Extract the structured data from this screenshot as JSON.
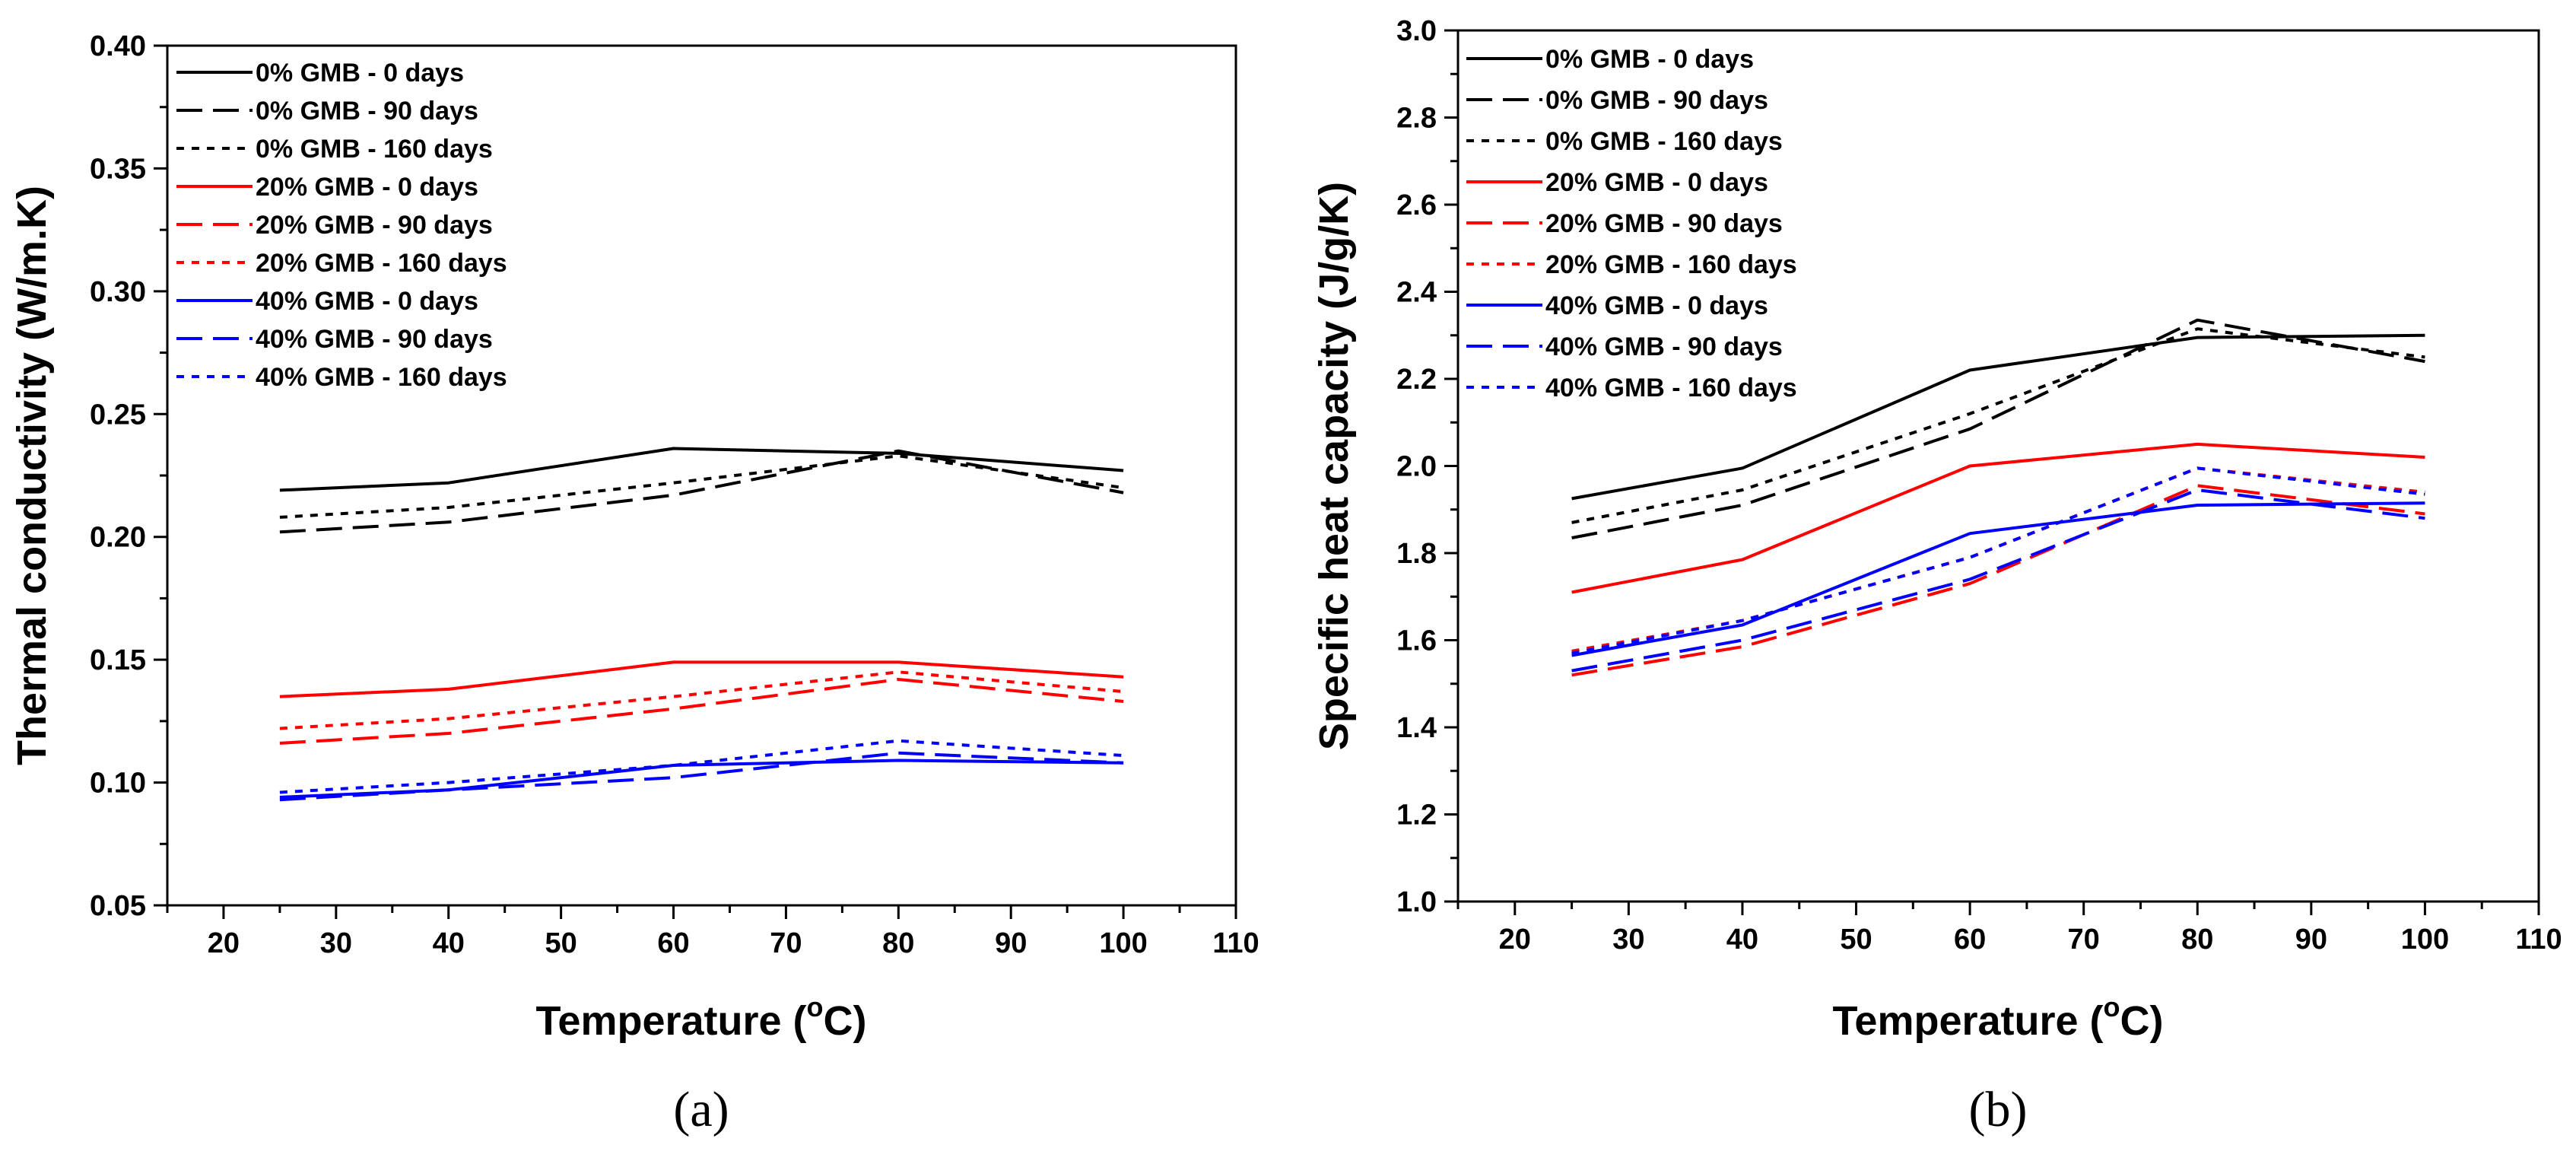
{
  "styles": {
    "colors": {
      "0% GMB": "#000000",
      "20% GMB": "#ff0000",
      "40% GMB": "#0000ff"
    },
    "dash": {
      "0 days": "solid",
      "90 days": "long-dash",
      "160 days": "short-dash"
    }
  },
  "chart_data": [
    {
      "type": "line",
      "panel_label": "(a)",
      "xlabel_main": "Temperature (",
      "xlabel_sup": "o",
      "xlabel_end": "C)",
      "ylabel": "Thermal conductivity (W/m.K)",
      "xlim": [
        15,
        110
      ],
      "ylim": [
        0.05,
        0.4
      ],
      "xticks": [
        20,
        30,
        40,
        50,
        60,
        70,
        80,
        90,
        100,
        110
      ],
      "yticks": [
        "0.05",
        "0.10",
        "0.15",
        "0.20",
        "0.25",
        "0.30",
        "0.35",
        "0.40"
      ],
      "legend_position": "top-left",
      "x": [
        25,
        40,
        60,
        80,
        100
      ],
      "series": [
        {
          "name": "0% GMB - 0 days",
          "group": "0% GMB",
          "age": "0 days",
          "values": [
            0.219,
            0.222,
            0.236,
            0.234,
            0.227
          ]
        },
        {
          "name": "0% GMB - 90 days",
          "group": "0% GMB",
          "age": "90 days",
          "values": [
            0.202,
            0.206,
            0.217,
            0.235,
            0.218
          ]
        },
        {
          "name": "0% GMB - 160 days",
          "group": "0% GMB",
          "age": "160 days",
          "values": [
            0.208,
            0.212,
            0.222,
            0.233,
            0.22
          ]
        },
        {
          "name": "20% GMB - 0 days",
          "group": "20% GMB",
          "age": "0 days",
          "values": [
            0.135,
            0.138,
            0.149,
            0.149,
            0.143
          ]
        },
        {
          "name": "20% GMB - 90 days",
          "group": "20% GMB",
          "age": "90 days",
          "values": [
            0.116,
            0.12,
            0.13,
            0.142,
            0.133
          ]
        },
        {
          "name": "20% GMB - 160 days",
          "group": "20% GMB",
          "age": "160 days",
          "values": [
            0.122,
            0.126,
            0.135,
            0.145,
            0.137
          ]
        },
        {
          "name": "40% GMB - 0 days",
          "group": "40% GMB",
          "age": "0 days",
          "values": [
            0.094,
            0.097,
            0.107,
            0.109,
            0.108
          ]
        },
        {
          "name": "40% GMB - 90 days",
          "group": "40% GMB",
          "age": "90 days",
          "values": [
            0.093,
            0.097,
            0.102,
            0.112,
            0.108
          ]
        },
        {
          "name": "40% GMB - 160 days",
          "group": "40% GMB",
          "age": "160 days",
          "values": [
            0.096,
            0.1,
            0.107,
            0.117,
            0.111
          ]
        }
      ]
    },
    {
      "type": "line",
      "panel_label": "(b)",
      "xlabel_main": "Temperature (",
      "xlabel_sup": "o",
      "xlabel_end": "C)",
      "ylabel": "Specific heat capacity (J/g/K)",
      "xlim": [
        15,
        110
      ],
      "ylim": [
        1.0,
        3.0
      ],
      "xticks": [
        20,
        30,
        40,
        50,
        60,
        70,
        80,
        90,
        100,
        110
      ],
      "yticks": [
        "1.0",
        "1.2",
        "1.4",
        "1.6",
        "1.8",
        "2.0",
        "2.2",
        "2.4",
        "2.6",
        "2.8",
        "3.0"
      ],
      "legend_position": "top-left",
      "x": [
        25,
        40,
        60,
        80,
        100
      ],
      "series": [
        {
          "name": "0% GMB - 0 days",
          "group": "0% GMB",
          "age": "0 days",
          "values": [
            1.925,
            1.995,
            2.22,
            2.295,
            2.3
          ]
        },
        {
          "name": "0% GMB - 90 days",
          "group": "0% GMB",
          "age": "90 days",
          "values": [
            1.835,
            1.91,
            2.085,
            2.335,
            2.24
          ]
        },
        {
          "name": "0% GMB - 160 days",
          "group": "0% GMB",
          "age": "160 days",
          "values": [
            1.87,
            1.945,
            2.12,
            2.315,
            2.25
          ]
        },
        {
          "name": "20% GMB - 0 days",
          "group": "20% GMB",
          "age": "0 days",
          "values": [
            1.71,
            1.785,
            2.0,
            2.05,
            2.02
          ]
        },
        {
          "name": "20% GMB - 90 days",
          "group": "20% GMB",
          "age": "90 days",
          "values": [
            1.52,
            1.585,
            1.73,
            1.955,
            1.89
          ]
        },
        {
          "name": "20% GMB - 160 days",
          "group": "20% GMB",
          "age": "160 days",
          "values": [
            1.575,
            1.645,
            1.79,
            1.995,
            1.94
          ]
        },
        {
          "name": "40% GMB - 0 days",
          "group": "40% GMB",
          "age": "0 days",
          "values": [
            1.565,
            1.635,
            1.845,
            1.91,
            1.915
          ]
        },
        {
          "name": "40% GMB - 90 days",
          "group": "40% GMB",
          "age": "90 days",
          "values": [
            1.53,
            1.6,
            1.74,
            1.945,
            1.88
          ]
        },
        {
          "name": "40% GMB - 160 days",
          "group": "40% GMB",
          "age": "160 days",
          "values": [
            1.57,
            1.645,
            1.79,
            1.995,
            1.935
          ]
        }
      ]
    }
  ]
}
